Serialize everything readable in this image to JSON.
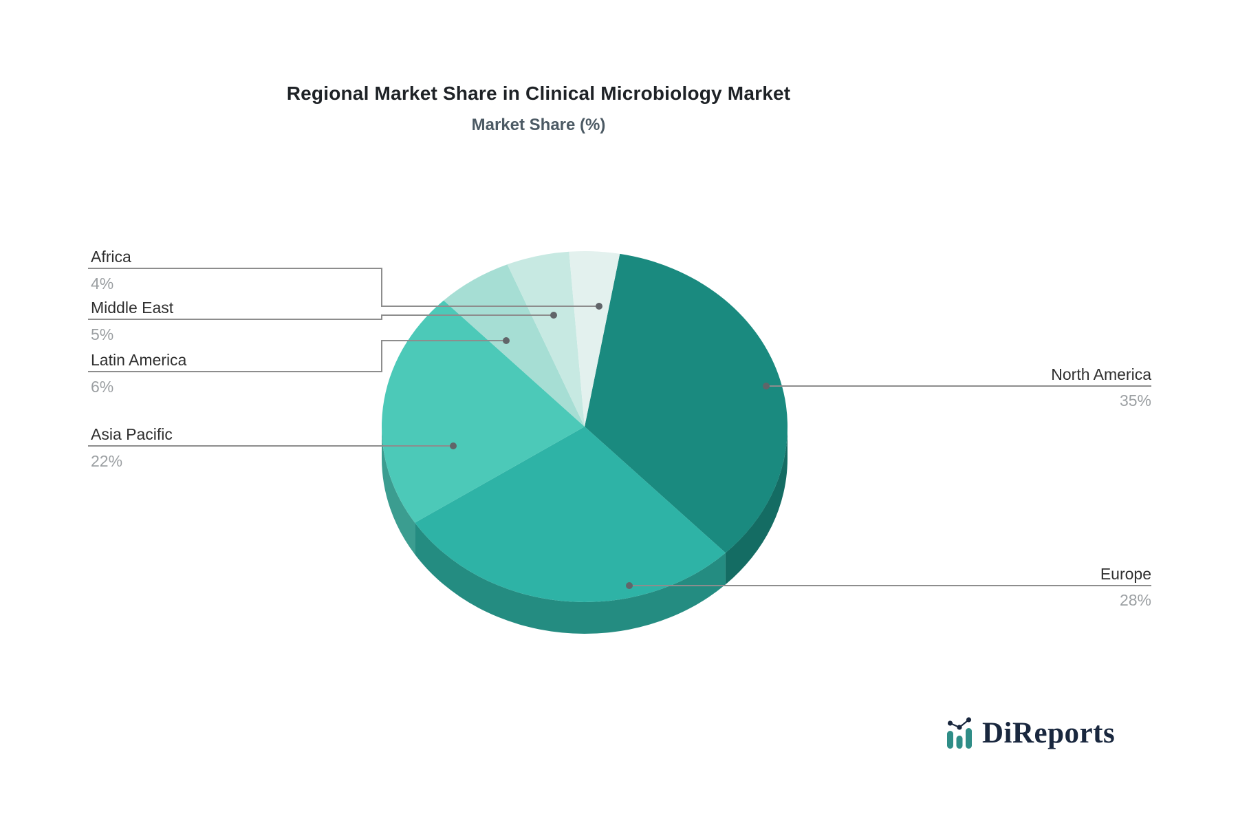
{
  "chart_data": {
    "type": "pie",
    "title": "Regional Market Share in Clinical Microbiology Market",
    "subtitle": "Market Share (%)",
    "unit": "%",
    "effect": "3d",
    "direction": "clockwise",
    "start_angle_deg": 10,
    "label_style": "callout-lines-with-dots",
    "legend_position": "none",
    "slices": [
      {
        "label": "North America",
        "value": 35,
        "pct_label": "35%",
        "color": "#1a8a7f"
      },
      {
        "label": "Europe",
        "value": 28,
        "pct_label": "28%",
        "color": "#2eb3a6"
      },
      {
        "label": "Asia Pacific",
        "value": 22,
        "pct_label": "22%",
        "color": "#4cc9b8"
      },
      {
        "label": "Latin America",
        "value": 6,
        "pct_label": "6%",
        "color": "#a6ded4"
      },
      {
        "label": "Middle East",
        "value": 5,
        "pct_label": "5%",
        "color": "#c7e9e2"
      },
      {
        "label": "Africa",
        "value": 4,
        "pct_label": "4%",
        "color": "#e3f1ee"
      }
    ]
  },
  "branding": {
    "logo_text": "DiReports"
  },
  "colors": {
    "connector": "#8d8d8d",
    "dot": "#616569",
    "label_text": "#2f2f2f",
    "pct_text": "#9b9fa2",
    "logo_navy": "#19273e",
    "logo_teal": "#2f8d87"
  }
}
